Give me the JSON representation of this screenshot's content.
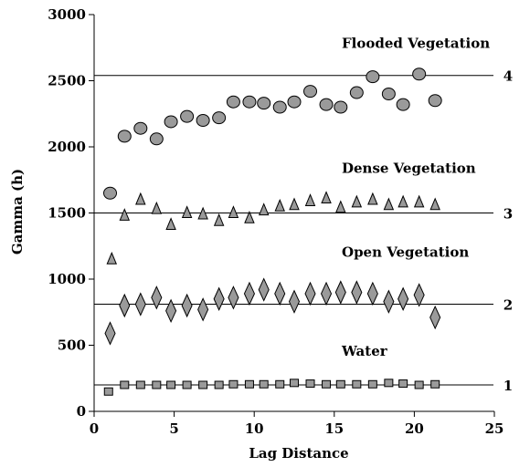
{
  "chart_data": {
    "type": "scatter",
    "title": "",
    "xlabel": "Lag Distance",
    "ylabel": "Gamma (h)",
    "xlim": [
      0,
      25
    ],
    "ylim": [
      0,
      3000
    ],
    "x_ticks": [
      "0",
      "5",
      "10",
      "15",
      "20",
      "25"
    ],
    "y_ticks": [
      "0",
      "500",
      "1000",
      "1500",
      "2000",
      "2500",
      "3000"
    ],
    "grid": false,
    "legend": "none",
    "series": [
      {
        "name": "Water",
        "marker": "square",
        "sill": 200,
        "sill_label": "1",
        "x": [
          0.9,
          1.9,
          2.9,
          3.9,
          4.8,
          5.8,
          6.8,
          7.8,
          8.7,
          9.7,
          10.6,
          11.6,
          12.5,
          13.5,
          14.5,
          15.4,
          16.4,
          17.4,
          18.4,
          19.3,
          20.3,
          21.3
        ],
        "y": [
          150,
          200,
          200,
          200,
          200,
          200,
          200,
          200,
          205,
          205,
          205,
          205,
          215,
          210,
          205,
          205,
          205,
          205,
          215,
          210,
          200,
          205
        ]
      },
      {
        "name": "Open Vegetation",
        "marker": "diamond",
        "sill": 810,
        "sill_label": "2",
        "x": [
          1.0,
          1.9,
          2.9,
          3.9,
          4.8,
          5.8,
          6.8,
          7.8,
          8.7,
          9.7,
          10.6,
          11.6,
          12.5,
          13.5,
          14.5,
          15.4,
          16.4,
          17.4,
          18.4,
          19.3,
          20.3,
          21.3
        ],
        "y": [
          590,
          800,
          810,
          860,
          760,
          800,
          770,
          850,
          860,
          890,
          920,
          890,
          830,
          890,
          890,
          900,
          900,
          890,
          830,
          850,
          880,
          710
        ]
      },
      {
        "name": "Dense Vegetation",
        "marker": "triangle",
        "sill": 1500,
        "sill_label": "3",
        "x": [
          1.1,
          1.9,
          2.9,
          3.9,
          4.8,
          5.8,
          6.8,
          7.8,
          8.7,
          9.7,
          10.6,
          11.6,
          12.5,
          13.5,
          14.5,
          15.4,
          16.4,
          17.4,
          18.4,
          19.3,
          20.3,
          21.3
        ],
        "y": [
          1150,
          1480,
          1600,
          1530,
          1410,
          1500,
          1490,
          1440,
          1500,
          1460,
          1520,
          1550,
          1560,
          1590,
          1610,
          1540,
          1580,
          1600,
          1560,
          1580,
          1580,
          1560
        ]
      },
      {
        "name": "Flooded Vegetation",
        "marker": "circle",
        "sill": 2540,
        "sill_label": "4",
        "x": [
          1.0,
          1.9,
          2.9,
          3.9,
          4.8,
          5.8,
          6.8,
          7.8,
          8.7,
          9.7,
          10.6,
          11.6,
          12.5,
          13.5,
          14.5,
          15.4,
          16.4,
          17.4,
          18.4,
          19.3,
          20.3,
          21.3
        ],
        "y": [
          1650,
          2080,
          2140,
          2060,
          2190,
          2230,
          2200,
          2220,
          2340,
          2340,
          2330,
          2300,
          2340,
          2420,
          2320,
          2300,
          2410,
          2530,
          2400,
          2320,
          2550,
          2350
        ]
      }
    ]
  }
}
